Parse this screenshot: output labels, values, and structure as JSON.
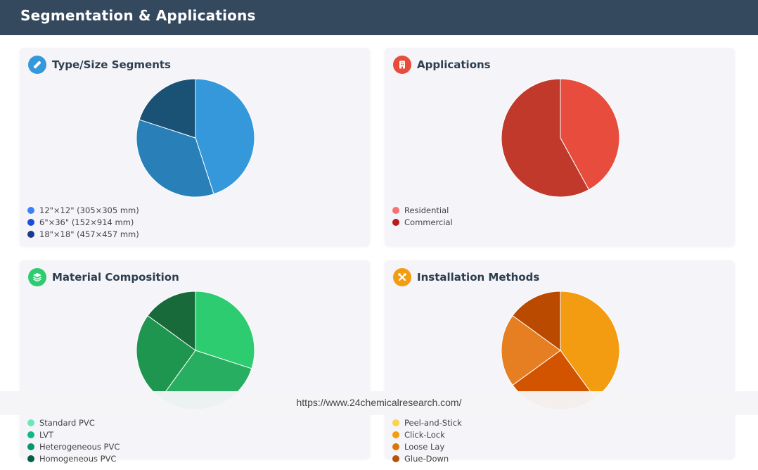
{
  "header": {
    "title": "Segmentation & Applications"
  },
  "url_overlay": "https://www.24chemicalresearch.com/",
  "cards": [
    {
      "title": "Type/Size Segments",
      "icon": "ruler-icon",
      "icon_bg": "#3498db"
    },
    {
      "title": "Applications",
      "icon": "building-icon",
      "icon_bg": "#e74c3c"
    },
    {
      "title": "Material Composition",
      "icon": "layers-icon",
      "icon_bg": "#2ecc71"
    },
    {
      "title": "Installation Methods",
      "icon": "tools-icon",
      "icon_bg": "#f39c12"
    }
  ],
  "chart_data": [
    {
      "type": "pie",
      "title": "Type/Size Segments",
      "categories": [
        "12\"×12\" (305×305 mm)",
        "6\"×36\" (152×914 mm)",
        "18\"×18\" (457×457 mm)"
      ],
      "values": [
        45,
        35,
        20
      ],
      "slice_colors": [
        "#3498db",
        "#2980b9",
        "#1a5276"
      ],
      "legend_colors": [
        "#3b82f6",
        "#1d4ed8",
        "#1e3a8a"
      ],
      "legend": "bottom-left"
    },
    {
      "type": "pie",
      "title": "Applications",
      "categories": [
        "Residential",
        "Commercial"
      ],
      "values": [
        42,
        58
      ],
      "slice_colors": [
        "#e74c3c",
        "#c0392b"
      ],
      "legend_colors": [
        "#f87171",
        "#b91c1c"
      ],
      "legend": "bottom-left"
    },
    {
      "type": "pie",
      "title": "Material Composition",
      "categories": [
        "Standard PVC",
        "LVT",
        "Heterogeneous PVC",
        "Homogeneous PVC"
      ],
      "values": [
        30,
        30,
        25,
        15
      ],
      "slice_colors": [
        "#2ecc71",
        "#27ae60",
        "#1e9650",
        "#186a3b"
      ],
      "legend_colors": [
        "#6ee7b7",
        "#10b981",
        "#059669",
        "#065f46"
      ],
      "legend": "bottom-left"
    },
    {
      "type": "pie",
      "title": "Installation Methods",
      "categories": [
        "Peel-and-Stick",
        "Click-Lock",
        "Loose Lay",
        "Glue-Down"
      ],
      "values": [
        40,
        25,
        20,
        15
      ],
      "slice_colors": [
        "#f39c12",
        "#d35400",
        "#e67e22",
        "#b94a00"
      ],
      "legend_colors": [
        "#fcd34d",
        "#f59e0b",
        "#d97706",
        "#b45309"
      ],
      "legend": "bottom-left"
    }
  ]
}
